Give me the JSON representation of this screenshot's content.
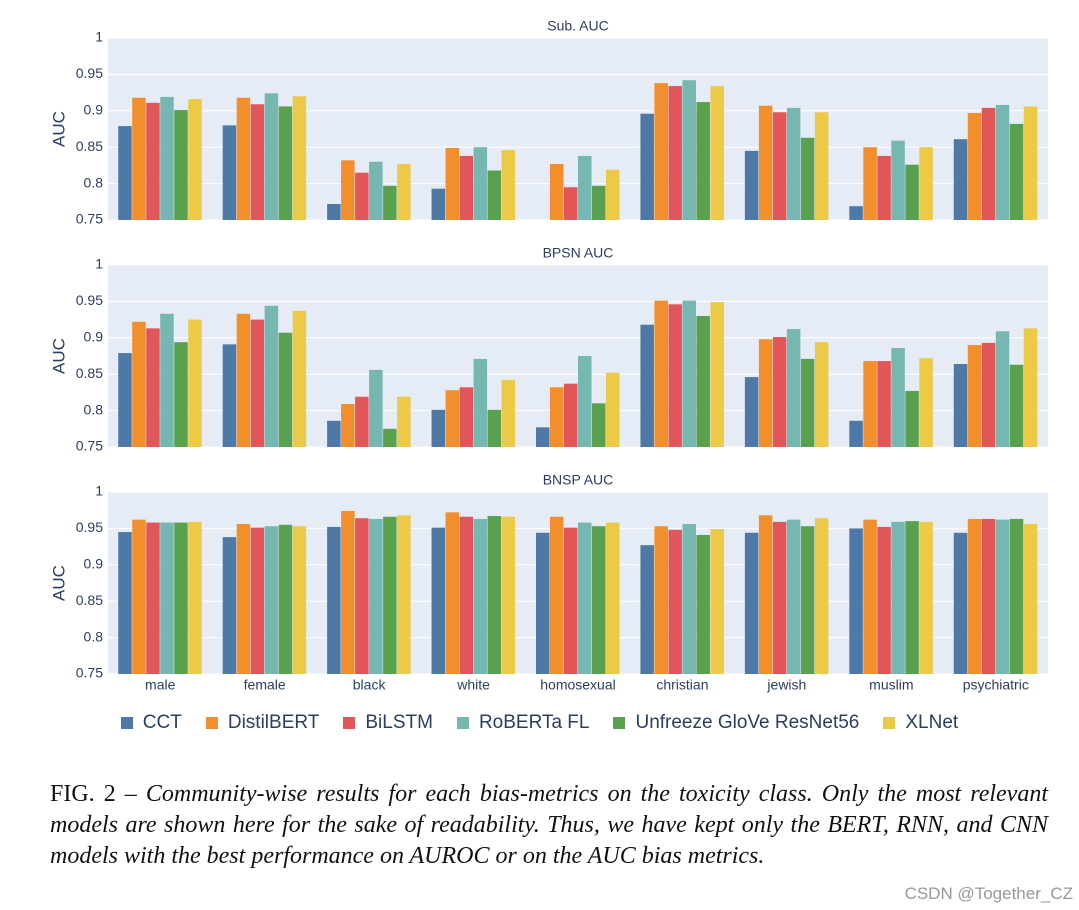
{
  "chart_data": [
    {
      "type": "bar",
      "title": "Sub. AUC",
      "ylabel": "AUC",
      "ylim": [
        0.75,
        1
      ],
      "yticks": [
        0.75,
        0.8,
        0.85,
        0.9,
        0.95,
        1
      ],
      "grid": true,
      "series": [
        {
          "name": "CCT",
          "color": "#4e79a7",
          "values": [
            0.879,
            0.88,
            0.772,
            0.793,
            null,
            0.896,
            0.845,
            0.769,
            0.861
          ]
        },
        {
          "name": "DistilBERT",
          "color": "#f28e2b",
          "values": [
            0.918,
            0.918,
            0.832,
            0.849,
            0.827,
            0.938,
            0.907,
            0.85,
            0.897
          ]
        },
        {
          "name": "BiLSTM",
          "color": "#e15759",
          "values": [
            0.911,
            0.909,
            0.815,
            0.838,
            0.795,
            0.934,
            0.898,
            0.838,
            0.904
          ]
        },
        {
          "name": "RoBERTa FL",
          "color": "#76b7b2",
          "values": [
            0.919,
            0.924,
            0.83,
            0.85,
            0.838,
            0.942,
            0.904,
            0.859,
            0.908
          ]
        },
        {
          "name": "Unfreeze GloVe ResNet56",
          "color": "#59a14f",
          "values": [
            0.901,
            0.906,
            0.797,
            0.818,
            0.797,
            0.912,
            0.863,
            0.826,
            0.882
          ]
        },
        {
          "name": "XLNet",
          "color": "#edc948",
          "values": [
            0.916,
            0.92,
            0.827,
            0.846,
            0.819,
            0.934,
            0.898,
            0.85,
            0.906
          ]
        }
      ]
    },
    {
      "type": "bar",
      "title": "BPSN AUC",
      "ylabel": "AUC",
      "ylim": [
        0.75,
        1
      ],
      "yticks": [
        0.75,
        0.8,
        0.85,
        0.9,
        0.95,
        1
      ],
      "grid": true,
      "series": [
        {
          "color": "#4e79a7",
          "values": [
            0.879,
            0.891,
            0.786,
            0.801,
            0.777,
            0.918,
            0.846,
            0.786,
            0.864
          ]
        },
        {
          "color": "#f28e2b",
          "values": [
            0.922,
            0.933,
            0.809,
            0.828,
            0.832,
            0.951,
            0.898,
            0.868,
            0.89
          ]
        },
        {
          "color": "#e15759",
          "values": [
            0.913,
            0.925,
            0.819,
            0.832,
            0.837,
            0.946,
            0.901,
            0.868,
            0.893
          ]
        },
        {
          "color": "#76b7b2",
          "values": [
            0.933,
            0.944,
            0.856,
            0.871,
            0.875,
            0.951,
            0.912,
            0.886,
            0.909
          ]
        },
        {
          "color": "#59a14f",
          "values": [
            0.894,
            0.907,
            0.775,
            0.801,
            0.81,
            0.93,
            0.871,
            0.827,
            0.863
          ]
        },
        {
          "color": "#edc948",
          "values": [
            0.925,
            0.937,
            0.819,
            0.842,
            0.852,
            0.949,
            0.894,
            0.872,
            0.913
          ]
        }
      ]
    },
    {
      "type": "bar",
      "title": "BNSP AUC",
      "ylabel": "AUC",
      "ylim": [
        0.75,
        1
      ],
      "yticks": [
        0.75,
        0.8,
        0.85,
        0.9,
        0.95,
        1
      ],
      "grid": true,
      "categories": [
        "male",
        "female",
        "black",
        "white",
        "homosexual",
        "christian",
        "jewish",
        "muslim",
        "psychiatric"
      ],
      "series": [
        {
          "color": "#4e79a7",
          "values": [
            0.945,
            0.938,
            0.952,
            0.951,
            0.944,
            0.927,
            0.944,
            0.95,
            0.944
          ]
        },
        {
          "color": "#f28e2b",
          "values": [
            0.962,
            0.956,
            0.974,
            0.972,
            0.966,
            0.953,
            0.968,
            0.962,
            0.963
          ]
        },
        {
          "color": "#e15759",
          "values": [
            0.958,
            0.951,
            0.964,
            0.966,
            0.951,
            0.948,
            0.959,
            0.952,
            0.963
          ]
        },
        {
          "color": "#76b7b2",
          "values": [
            0.958,
            0.953,
            0.963,
            0.963,
            0.958,
            0.956,
            0.962,
            0.959,
            0.962
          ]
        },
        {
          "color": "#59a14f",
          "values": [
            0.958,
            0.955,
            0.966,
            0.967,
            0.953,
            0.941,
            0.953,
            0.96,
            0.963
          ]
        },
        {
          "color": "#edc948",
          "values": [
            0.959,
            0.953,
            0.968,
            0.966,
            0.958,
            0.949,
            0.964,
            0.959,
            0.956
          ]
        }
      ]
    }
  ],
  "caption": {
    "label": "FIG. 2 –",
    "text": "Community-wise results for each bias-metrics on the toxicity class. Only the most relevant models are shown here for the sake of readability. Thus, we have kept only the BERT, RNN, and CNN models with the best performance on AUROC or on the AUC bias metrics."
  },
  "watermark": "CSDN @Together_CZ"
}
